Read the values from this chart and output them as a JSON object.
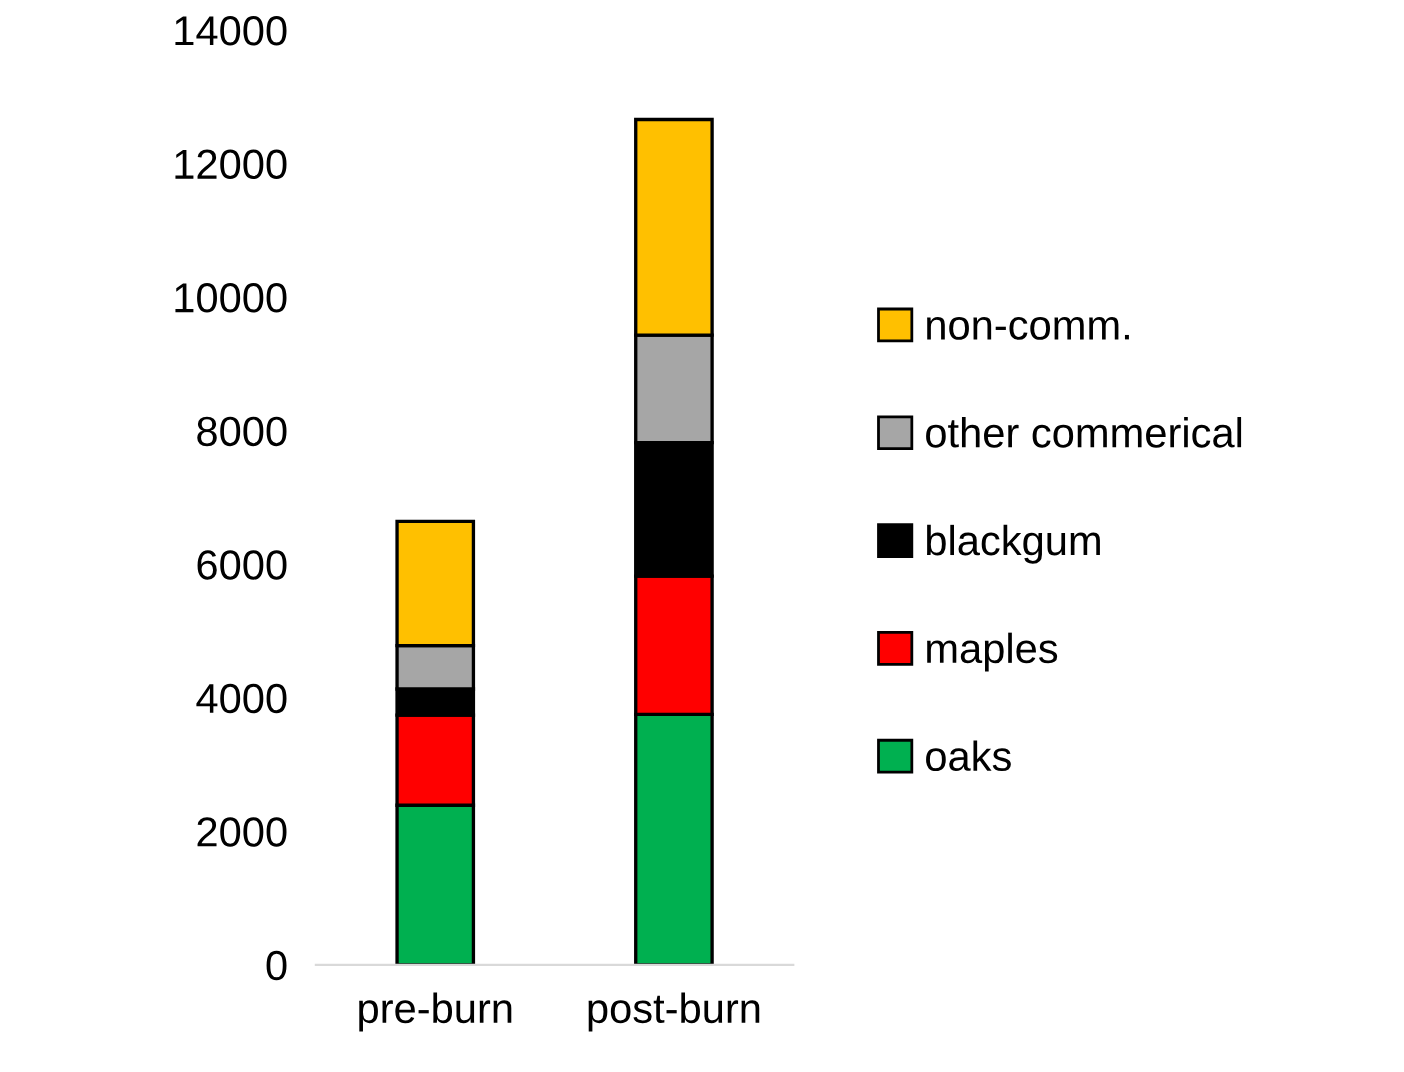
{
  "chart_data": {
    "type": "bar",
    "stacked": true,
    "categories": [
      "pre-burn",
      "post-burn"
    ],
    "series": [
      {
        "name": "oaks",
        "color": "#00b050",
        "values": [
          2390,
          3750
        ]
      },
      {
        "name": "maples",
        "color": "#ff0000",
        "values": [
          1350,
          2070
        ]
      },
      {
        "name": "blackgum",
        "color": "#000000",
        "values": [
          390,
          2000
        ]
      },
      {
        "name": "other commerical",
        "color": "#a6a6a6",
        "values": [
          650,
          1610
        ]
      },
      {
        "name": "non-comm.",
        "color": "#ffc000",
        "values": [
          1860,
          3230
        ]
      }
    ],
    "ylim": [
      0,
      14000
    ],
    "yticks": [
      0,
      2000,
      4000,
      6000,
      8000,
      10000,
      12000,
      14000
    ],
    "grid": false,
    "legend": "right"
  }
}
